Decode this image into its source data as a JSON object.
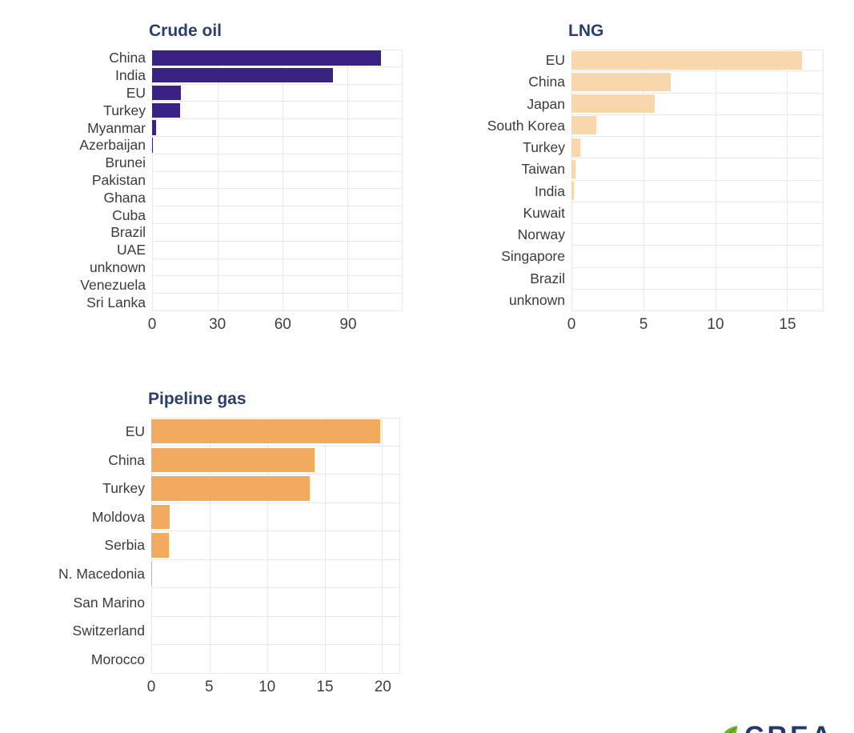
{
  "page": {
    "background": "#ffffff"
  },
  "logo": {
    "text": "CREA",
    "text_color": "#24386b",
    "leaf_color": "#6fb52c"
  },
  "styles": {
    "title_color": "#2b3f6d",
    "label_color": "#3b3b3b",
    "tick_color": "#3f3f3f",
    "grid_color": "#e9e9e9"
  },
  "chart_data": [
    {
      "type": "bar",
      "orientation": "horizontal",
      "title": "Crude oil",
      "bar_color": "#392283",
      "categories": [
        "China",
        "India",
        "EU",
        "Turkey",
        "Myanmar",
        "Azerbaijan",
        "Brunei",
        "Pakistan",
        "Ghana",
        "Cuba",
        "Brazil",
        "UAE",
        "unknown",
        "Venezuela",
        "Sri Lanka"
      ],
      "values": [
        105,
        83,
        13.4,
        12.7,
        1.9,
        0.4,
        0,
        0,
        0,
        0,
        0,
        0,
        0,
        0,
        0
      ],
      "xticks": [
        0,
        30,
        60,
        90
      ],
      "xlim": [
        0,
        115
      ],
      "grid": true,
      "legend": false
    },
    {
      "type": "bar",
      "orientation": "horizontal",
      "title": "LNG",
      "bar_color": "#f8d7ad",
      "categories": [
        "EU",
        "China",
        "Japan",
        "South Korea",
        "Turkey",
        "Taiwan",
        "India",
        "Kuwait",
        "Norway",
        "Singapore",
        "Brazil",
        "unknown"
      ],
      "values": [
        16,
        6.9,
        5.8,
        1.7,
        0.6,
        0.3,
        0.15,
        0,
        0,
        0,
        0,
        0
      ],
      "xticks": [
        0,
        5,
        10,
        15
      ],
      "xlim": [
        0,
        17.5
      ],
      "grid": true,
      "legend": false
    },
    {
      "type": "bar",
      "orientation": "horizontal",
      "title": "Pipeline gas",
      "bar_color": "#f2ab5e",
      "categories": [
        "EU",
        "China",
        "Turkey",
        "Moldova",
        "Serbia",
        "N. Macedonia",
        "San Marino",
        "Switzerland",
        "Morocco"
      ],
      "values": [
        19.8,
        14.1,
        13.7,
        1.6,
        1.5,
        0.1,
        0,
        0,
        0
      ],
      "xticks": [
        0,
        5,
        10,
        15,
        20
      ],
      "xlim": [
        0,
        21.5
      ],
      "grid": true,
      "legend": false
    }
  ]
}
